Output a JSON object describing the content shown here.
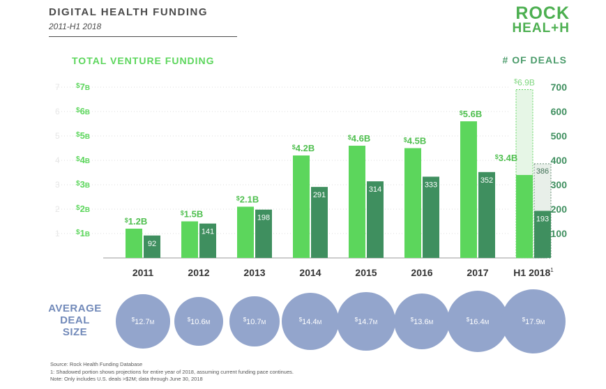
{
  "header": {
    "title": "DIGITAL HEALTH FUNDING",
    "subtitle": "2011-H1 2018"
  },
  "logo": {
    "line1": "ROCK",
    "line2": "HEAL+H"
  },
  "colors": {
    "funding_bar": "#5cd65c",
    "deals_bar": "#3f8f5f",
    "projection_fill": "#e6f6e6",
    "projection_border": "#5cd65c",
    "circle": "#93a5cc",
    "avg_label": "#7189b9"
  },
  "chart_data": {
    "type": "bar",
    "left_axis_title": "TOTAL VENTURE FUNDING",
    "right_axis_title": "# OF DEALS",
    "categories": [
      "2011",
      "2012",
      "2013",
      "2014",
      "2015",
      "2016",
      "2017",
      "H1 2018"
    ],
    "category_footnote": {
      "H1 2018": "1"
    },
    "left_axis": {
      "unit": "B",
      "prefix": "$",
      "ylim": [
        0,
        7
      ],
      "ticks": [
        1,
        2,
        3,
        4,
        5,
        6,
        7
      ]
    },
    "right_axis": {
      "ylim": [
        0,
        700
      ],
      "ticks": [
        100,
        200,
        300,
        400,
        500,
        600,
        700
      ]
    },
    "series": [
      {
        "name": "Total venture funding",
        "axis": "left",
        "values": [
          1.2,
          1.5,
          2.1,
          4.2,
          4.6,
          4.5,
          5.6,
          3.4
        ],
        "labels": [
          "1.2B",
          "1.5B",
          "2.1B",
          "4.2B",
          "4.6B",
          "4.5B",
          "5.6B",
          "3.4B"
        ],
        "projection": {
          "category": "H1 2018",
          "value": 6.9,
          "label": "6.9B"
        }
      },
      {
        "name": "# of deals",
        "axis": "right",
        "values": [
          92,
          141,
          198,
          291,
          314,
          333,
          352,
          193
        ],
        "labels": [
          "92",
          "141",
          "198",
          "291",
          "314",
          "333",
          "352",
          "193"
        ],
        "projection": {
          "category": "H1 2018",
          "value": 386,
          "label": "386"
        }
      }
    ],
    "grid": true
  },
  "avg_deal_size": {
    "label_lines": [
      "AVERAGE",
      "DEAL",
      "SIZE"
    ],
    "values": [
      12.7,
      10.6,
      10.7,
      14.4,
      14.7,
      13.6,
      16.4,
      17.9
    ],
    "labels": [
      "12.7M",
      "10.6M",
      "10.7M",
      "14.4M",
      "14.7M",
      "13.6M",
      "16.4M",
      "17.9M"
    ]
  },
  "notes": [
    "Source: Rock Health Funding Database",
    "1: Shadowed portion shows projections for entire year of 2018, assuming current funding pace continues.",
    "Note: Only includes U.S. deals >$2M; data through June 30, 2018"
  ]
}
